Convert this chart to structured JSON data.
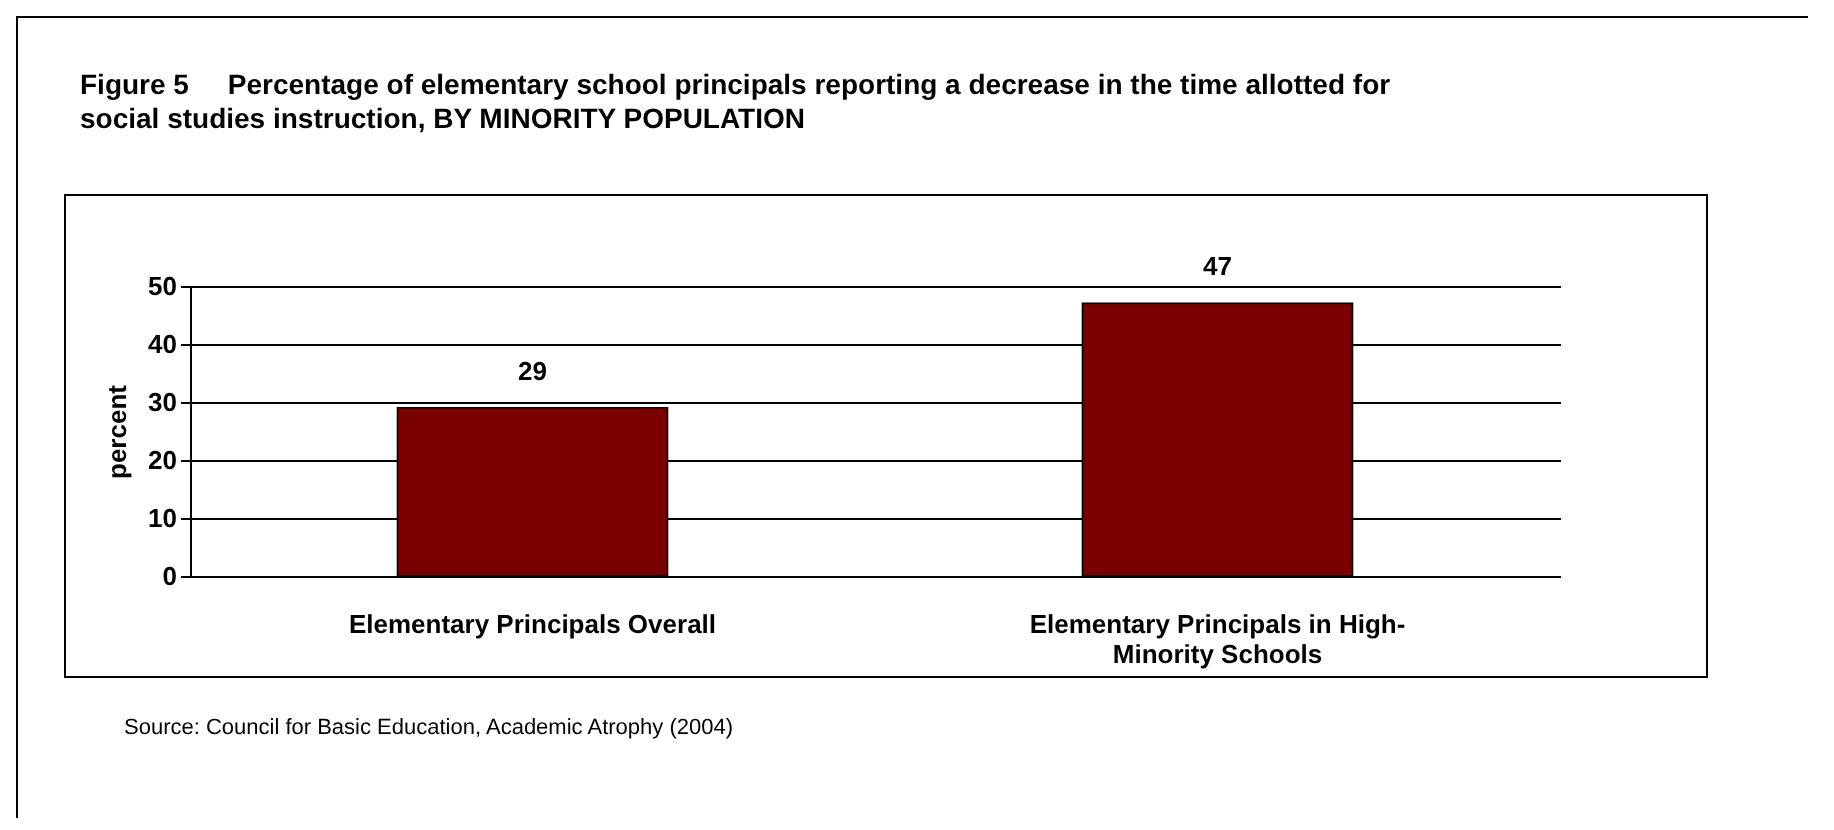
{
  "chart_data": {
    "type": "bar",
    "title": "Figure 5     Percentage of elementary school principals reporting a decrease in the time allotted for social studies instruction, BY MINORITY POPULATION",
    "ylabel": "percent",
    "categories": [
      "Elementary Principals Overall",
      "Elementary Principals in High-Minority Schools"
    ],
    "values": [
      29,
      47
    ],
    "color": "#7a0000",
    "ylim": [
      0,
      50
    ],
    "yticks": [
      0,
      10,
      20,
      30,
      40,
      50
    ],
    "grid": "y",
    "data_labels": true,
    "annotations": [
      "Source: Council for Basic Education, Academic Atrophy (2004)"
    ]
  }
}
